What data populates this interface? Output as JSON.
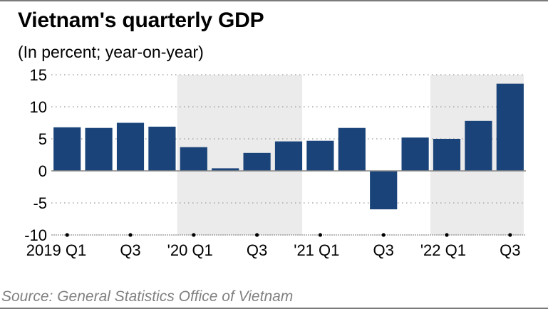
{
  "header": {
    "title": "Vietnam's quarterly GDP",
    "subtitle": "(In percent; year-on-year)"
  },
  "footer": {
    "source": "Source: General Statistics Office of Vietnam"
  },
  "colors": {
    "bar": "#1a4479",
    "shade": "#ebebeb",
    "grid": "#aaaaaa",
    "zero_line": "#888888",
    "source_text": "#808080"
  },
  "chart_data": {
    "type": "bar",
    "title": "Vietnam's quarterly GDP",
    "subtitle": "(In percent; year-on-year)",
    "xlabel": "",
    "ylabel": "",
    "categories": [
      "2019 Q1",
      "2019 Q2",
      "2019 Q3",
      "2019 Q4",
      "2020 Q1",
      "2020 Q2",
      "2020 Q3",
      "2020 Q4",
      "2021 Q1",
      "2021 Q2",
      "2021 Q3",
      "2021 Q4",
      "2022 Q1",
      "2022 Q2",
      "2022 Q3"
    ],
    "values": [
      6.8,
      6.7,
      7.5,
      6.9,
      3.7,
      0.4,
      2.8,
      4.6,
      4.7,
      6.7,
      -6.0,
      5.2,
      5.0,
      7.8,
      13.6
    ],
    "ylim": [
      -10,
      15
    ],
    "yticks": [
      15,
      10,
      5,
      0,
      -5,
      -10
    ],
    "xtick_labels": [
      {
        "index": 0,
        "label": "2019 Q1"
      },
      {
        "index": 2,
        "label": "Q3"
      },
      {
        "index": 4,
        "label": "'20 Q1"
      },
      {
        "index": 6,
        "label": "Q3"
      },
      {
        "index": 8,
        "label": "'21 Q1"
      },
      {
        "index": 10,
        "label": "Q3"
      },
      {
        "index": 12,
        "label": "'22 Q1"
      },
      {
        "index": 14,
        "label": "Q3"
      }
    ],
    "shaded_ranges": [
      {
        "label": "2020",
        "start_index": 4,
        "end_index": 7
      },
      {
        "label": "2022",
        "start_index": 12,
        "end_index": 14
      }
    ],
    "grid": true,
    "legend": "none",
    "source": "Source: General Statistics Office of Vietnam"
  }
}
